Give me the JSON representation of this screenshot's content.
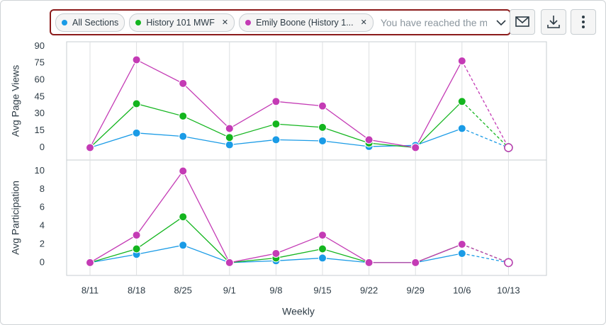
{
  "filters": {
    "chips": [
      "All Sections",
      "History 101 MWF",
      "Emily Boone (History 1..."
    ],
    "placeholder": "You have reached the ma"
  },
  "chart_data": {
    "type": "line",
    "x_label": "Weekly",
    "categories": [
      "8/11",
      "8/18",
      "8/25",
      "9/1",
      "9/8",
      "9/15",
      "9/22",
      "9/29",
      "10/6",
      "10/13"
    ],
    "dashed_last_segment": true,
    "legend": [
      {
        "name": "All Sections",
        "color": "#1a9be6"
      },
      {
        "name": "History 101 MWF",
        "color": "#13b51e"
      },
      {
        "name": "Emily Boone (History 1...",
        "color": "#c43bb5"
      }
    ],
    "panels": [
      {
        "y_label": "Avg Page Views",
        "ylim": [
          -11,
          94
        ],
        "yticks": [
          0,
          15,
          30,
          45,
          60,
          75,
          90
        ],
        "series": [
          {
            "values": [
              0,
              13,
              10,
              2.5,
              7,
              6,
              1,
              2,
              17,
              0
            ]
          },
          {
            "values": [
              0,
              39,
              28,
              9,
              21,
              18,
              4,
              0,
              41,
              0
            ]
          },
          {
            "values": [
              0,
              78,
              57,
              17,
              41,
              37,
              7,
              0,
              77,
              0
            ]
          }
        ]
      },
      {
        "y_label": "Avg Participation",
        "ylim": [
          -1.4,
          11.2
        ],
        "yticks": [
          0,
          2,
          4,
          6,
          8,
          10
        ],
        "series": [
          {
            "values": [
              0,
              0.9,
              1.9,
              0,
              0.2,
              0.5,
              0,
              0,
              1,
              0
            ]
          },
          {
            "values": [
              0,
              1.5,
              5,
              0,
              0.5,
              1.5,
              0,
              0,
              2,
              0
            ]
          },
          {
            "values": [
              0,
              3,
              10,
              0,
              1,
              3,
              0,
              0,
              2,
              0
            ]
          }
        ]
      }
    ]
  }
}
